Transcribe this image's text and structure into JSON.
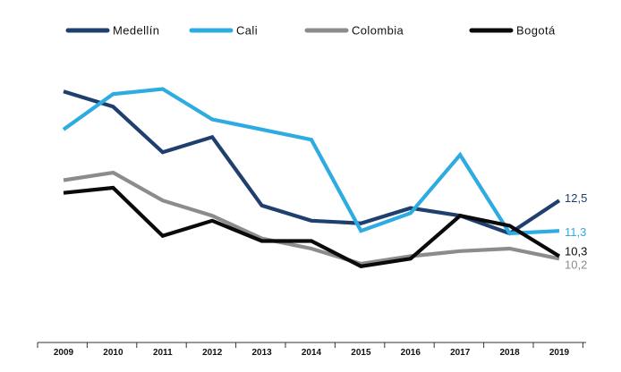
{
  "chart_data": {
    "type": "line",
    "x": [
      "2009",
      "2010",
      "2011",
      "2012",
      "2013",
      "2014",
      "2015",
      "2016",
      "2017",
      "2018",
      "2019"
    ],
    "series": [
      {
        "name": "Medellín",
        "color": "#1f3f6e",
        "values": [
          16.8,
          16.2,
          14.4,
          15.0,
          12.3,
          11.7,
          11.6,
          12.2,
          11.9,
          11.2,
          12.5
        ],
        "end_label": "12,5"
      },
      {
        "name": "Cali",
        "color": "#2eace2",
        "values": [
          15.3,
          16.7,
          16.9,
          15.7,
          15.3,
          14.9,
          11.3,
          12.0,
          14.3,
          11.2,
          11.3
        ],
        "end_label": "11,3"
      },
      {
        "name": "Colombia",
        "color": "#8c8c8c",
        "values": [
          13.3,
          13.6,
          12.5,
          11.9,
          11.0,
          10.6,
          10.0,
          10.3,
          10.5,
          10.6,
          10.2
        ],
        "end_label": "10,2"
      },
      {
        "name": "Bogotá",
        "color": "#0a0a0a",
        "values": [
          12.8,
          13.0,
          11.1,
          11.7,
          10.9,
          10.9,
          9.9,
          10.2,
          11.9,
          11.5,
          10.3
        ],
        "end_label": "10,3"
      }
    ],
    "ylim": [
      7,
      19
    ],
    "grid": false,
    "legend_position": "top"
  }
}
